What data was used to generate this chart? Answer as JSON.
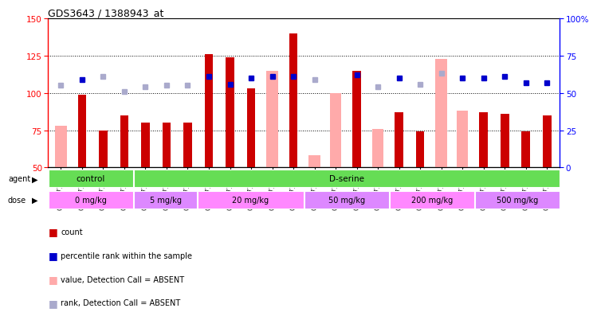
{
  "title": "GDS3643 / 1388943_at",
  "samples": [
    "GSM271362",
    "GSM271365",
    "GSM271367",
    "GSM271369",
    "GSM271372",
    "GSM271375",
    "GSM271377",
    "GSM271379",
    "GSM271382",
    "GSM271383",
    "GSM271384",
    "GSM271385",
    "GSM271386",
    "GSM271387",
    "GSM271388",
    "GSM271389",
    "GSM271390",
    "GSM271391",
    "GSM271392",
    "GSM271393",
    "GSM271394",
    "GSM271395",
    "GSM271396",
    "GSM271397"
  ],
  "count_present": [
    null,
    99,
    75,
    85,
    80,
    80,
    80,
    126,
    124,
    103,
    null,
    140,
    null,
    null,
    115,
    null,
    87,
    74,
    null,
    null,
    87,
    86,
    74,
    85
  ],
  "count_absent": [
    78,
    null,
    null,
    null,
    null,
    null,
    null,
    null,
    null,
    null,
    115,
    null,
    58,
    100,
    null,
    76,
    null,
    null,
    123,
    88,
    null,
    null,
    null,
    null
  ],
  "rank_present": [
    null,
    109,
    null,
    null,
    null,
    null,
    null,
    111,
    106,
    110,
    111,
    111,
    null,
    null,
    112,
    null,
    110,
    null,
    null,
    110,
    110,
    111,
    107,
    107
  ],
  "rank_absent": [
    105,
    null,
    111,
    101,
    104,
    105,
    105,
    null,
    null,
    null,
    null,
    null,
    109,
    null,
    null,
    104,
    null,
    106,
    113,
    null,
    null,
    null,
    null,
    null
  ],
  "agent_groups": [
    {
      "label": "control",
      "start": 0,
      "end": 4
    },
    {
      "label": "D-serine",
      "start": 4,
      "end": 24
    }
  ],
  "dose_groups": [
    {
      "label": "0 mg/kg",
      "alt": false,
      "start": 0,
      "end": 4
    },
    {
      "label": "5 mg/kg",
      "alt": true,
      "start": 4,
      "end": 7
    },
    {
      "label": "20 mg/kg",
      "alt": false,
      "start": 7,
      "end": 12
    },
    {
      "label": "50 mg/kg",
      "alt": true,
      "start": 12,
      "end": 16
    },
    {
      "label": "200 mg/kg",
      "alt": false,
      "start": 16,
      "end": 20
    },
    {
      "label": "500 mg/kg",
      "alt": true,
      "start": 20,
      "end": 24
    }
  ],
  "ylim_left": [
    50,
    150
  ],
  "ylim_right": [
    0,
    100
  ],
  "yticks_left": [
    50,
    75,
    100,
    125,
    150
  ],
  "yticks_right": [
    0,
    25,
    50,
    75,
    100
  ],
  "color_present_bar": "#cc0000",
  "color_absent_bar": "#ffaaaa",
  "color_present_dot": "#0000cc",
  "color_absent_dot": "#aaaacc",
  "agent_color": "#66dd55",
  "dose_color1": "#ff88ff",
  "dose_color2": "#dd88ff",
  "grid_color": "#444444",
  "bg_color": "#e8e8e8",
  "legend_labels": [
    "count",
    "percentile rank within the sample",
    "value, Detection Call = ABSENT",
    "rank, Detection Call = ABSENT"
  ]
}
